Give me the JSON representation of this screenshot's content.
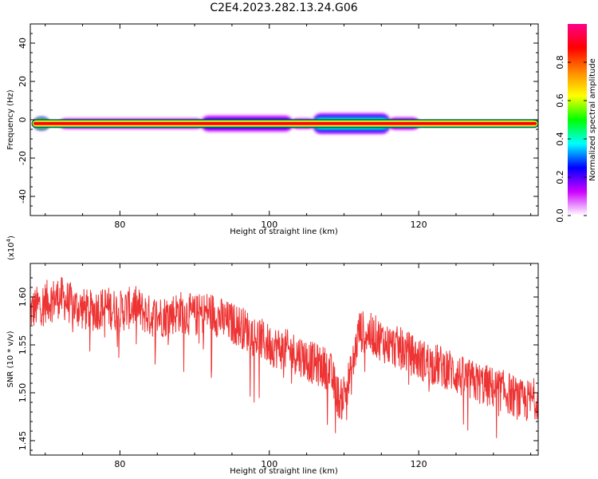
{
  "figure": {
    "title": "C2E4.2023.282.13.24.G06"
  },
  "chart_data": [
    {
      "type": "heatmap",
      "title": "C2E4.2023.282.13.24.G06",
      "xlabel": "Height of straight line (km)",
      "ylabel": "Frequency (Hz)",
      "xlim": [
        68,
        136
      ],
      "ylim": [
        -50,
        50
      ],
      "x_ticks": [
        80,
        100,
        120
      ],
      "y_ticks": [
        -40,
        -20,
        0,
        20,
        40
      ],
      "x_tick_labels": [
        "80",
        "100",
        "120"
      ],
      "y_tick_labels": [
        "-40",
        "-20",
        "0",
        "20",
        "40"
      ],
      "center_frequency": -2,
      "features": [
        {
          "x_start": 68.5,
          "x_end": 70.5,
          "peak_amplitude": 1.0,
          "halfwidth_hz": 3
        },
        {
          "x_start": 72,
          "x_end": 91,
          "peak_amplitude": 0.2,
          "halfwidth_hz": 2.5
        },
        {
          "x_start": 91,
          "x_end": 103,
          "peak_amplitude": 0.3,
          "halfwidth_hz": 4
        },
        {
          "x_start": 103,
          "x_end": 106,
          "peak_amplitude": 0.2,
          "halfwidth_hz": 2.5
        },
        {
          "x_start": 106,
          "x_end": 116,
          "peak_amplitude": 0.55,
          "halfwidth_hz": 5
        },
        {
          "x_start": 116,
          "x_end": 120,
          "peak_amplitude": 0.25,
          "halfwidth_hz": 3
        }
      ],
      "colorbar": {
        "label": "Normalized spectral amplitude",
        "range": [
          0,
          1
        ],
        "ticks": [
          0.0,
          0.2,
          0.4,
          0.6,
          0.8
        ],
        "tick_labels": [
          "0.0",
          "0.2",
          "0.4",
          "0.6",
          "0.8"
        ],
        "colors": [
          "#ffffff",
          "#cc00ff",
          "#0000ff",
          "#00ffff",
          "#00ff00",
          "#ffff00",
          "#ff8800",
          "#ff0000",
          "#ff0088"
        ]
      },
      "trace_color": "#ff0000"
    },
    {
      "type": "line",
      "xlabel": "Height of straight line (km)",
      "ylabel": "SNR (10 * v/v)",
      "y_multiplier_label": "(x10",
      "y_multiplier_exponent": "4",
      "y_multiplier_close": ")",
      "xlim": [
        68,
        136
      ],
      "ylim": [
        1.435,
        1.635
      ],
      "x_ticks": [
        80,
        100,
        120
      ],
      "y_ticks": [
        1.45,
        1.5,
        1.55,
        1.6
      ],
      "x_tick_labels": [
        "80",
        "100",
        "120"
      ],
      "y_tick_labels": [
        "1.45",
        "1.50",
        "1.55",
        "1.60"
      ],
      "color": "#ee3333",
      "series": [
        {
          "x": [
            68,
            70,
            72,
            74,
            76,
            78,
            80,
            82,
            84,
            86,
            88,
            90,
            92,
            94,
            96,
            98,
            100,
            102,
            104,
            106,
            108,
            109.5,
            111,
            112,
            114,
            116,
            118,
            120,
            122,
            124,
            126,
            128,
            130,
            132,
            134,
            136
          ],
          "values": [
            1.585,
            1.595,
            1.6,
            1.59,
            1.585,
            1.59,
            1.585,
            1.59,
            1.58,
            1.58,
            1.585,
            1.58,
            1.585,
            1.575,
            1.57,
            1.56,
            1.55,
            1.545,
            1.54,
            1.53,
            1.525,
            1.49,
            1.52,
            1.565,
            1.56,
            1.55,
            1.545,
            1.535,
            1.53,
            1.525,
            1.515,
            1.51,
            1.505,
            1.5,
            1.49,
            1.495
          ]
        }
      ]
    }
  ]
}
